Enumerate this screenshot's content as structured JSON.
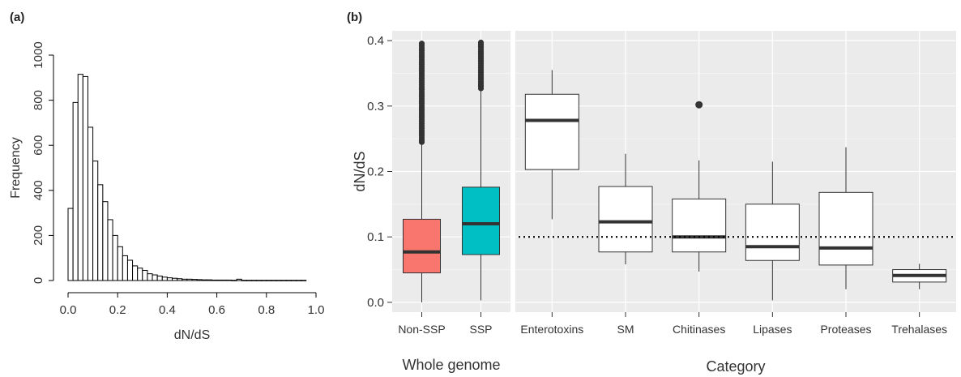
{
  "panel_labels": {
    "a": "(a)",
    "b": "(b)"
  },
  "chart_data": [
    {
      "type": "bar",
      "panel": "(a)",
      "xlabel": "dN/dS",
      "ylabel": "Frequency",
      "bin_width": 0.02,
      "xlim": [
        0,
        1.0
      ],
      "ylim": [
        0,
        1000
      ],
      "xticks": [
        "0.0",
        "0.2",
        "0.4",
        "0.6",
        "0.8",
        "1.0"
      ],
      "yticks": [
        "0",
        "200",
        "400",
        "600",
        "800",
        "1000"
      ],
      "bin_starts": [
        0.0,
        0.02,
        0.04,
        0.06,
        0.08,
        0.1,
        0.12,
        0.14,
        0.16,
        0.18,
        0.2,
        0.22,
        0.24,
        0.26,
        0.28,
        0.3,
        0.32,
        0.34,
        0.36,
        0.38,
        0.4,
        0.42,
        0.44,
        0.46,
        0.48,
        0.5,
        0.52,
        0.54,
        0.56,
        0.58,
        0.6,
        0.62,
        0.64,
        0.66,
        0.68,
        0.7,
        0.72,
        0.74,
        0.76,
        0.78,
        0.8,
        0.82,
        0.84,
        0.86,
        0.88,
        0.9,
        0.92,
        0.94
      ],
      "values": [
        320,
        790,
        915,
        905,
        680,
        530,
        425,
        350,
        270,
        200,
        150,
        110,
        90,
        65,
        55,
        45,
        30,
        25,
        20,
        15,
        12,
        10,
        8,
        6,
        6,
        5,
        4,
        3,
        3,
        2,
        2,
        2,
        2,
        1,
        6,
        1,
        1,
        1,
        1,
        1,
        1,
        1,
        1,
        1,
        1,
        1,
        1,
        1
      ],
      "color": "#ffffff",
      "edge_color": "#000000",
      "grid": false
    },
    {
      "type": "box",
      "panel": "(b)",
      "ylabel": "dN/dS",
      "ylim": [
        0,
        0.4
      ],
      "yticks": [
        "0.0",
        "0.1",
        "0.2",
        "0.3",
        "0.4"
      ],
      "grid": true,
      "background": "#ebebeb",
      "reference_line": 0.1,
      "facets": [
        {
          "label": "Whole genome",
          "categories": [
            "Non-SSP",
            "SSP"
          ],
          "boxes": [
            {
              "q1": 0.045,
              "median": 0.077,
              "q3": 0.127,
              "whisker_low": 0.0,
              "whisker_high": 0.245,
              "outliers_range": [
                0.245,
                0.398
              ],
              "color": "#f8766d"
            },
            {
              "q1": 0.073,
              "median": 0.12,
              "q3": 0.176,
              "whisker_low": 0.003,
              "whisker_high": 0.327,
              "outliers_range": [
                0.327,
                0.4
              ],
              "color": "#00bfc4"
            }
          ]
        },
        {
          "label": "Category",
          "categories": [
            "Enterotoxins",
            "SM",
            "Chitinases",
            "Lipases",
            "Proteases",
            "Trehalases"
          ],
          "boxes": [
            {
              "q1": 0.203,
              "median": 0.278,
              "q3": 0.318,
              "whisker_low": 0.127,
              "whisker_high": 0.355,
              "outliers": [],
              "color": "#ffffff"
            },
            {
              "q1": 0.077,
              "median": 0.123,
              "q3": 0.177,
              "whisker_low": 0.058,
              "whisker_high": 0.227,
              "outliers": [],
              "color": "#ffffff"
            },
            {
              "q1": 0.077,
              "median": 0.1,
              "q3": 0.158,
              "whisker_low": 0.047,
              "whisker_high": 0.217,
              "outliers": [
                0.302
              ],
              "color": "#ffffff"
            },
            {
              "q1": 0.064,
              "median": 0.085,
              "q3": 0.15,
              "whisker_low": 0.003,
              "whisker_high": 0.215,
              "outliers": [],
              "color": "#ffffff"
            },
            {
              "q1": 0.057,
              "median": 0.083,
              "q3": 0.168,
              "whisker_low": 0.02,
              "whisker_high": 0.237,
              "outliers": [],
              "color": "#ffffff"
            },
            {
              "q1": 0.031,
              "median": 0.041,
              "q3": 0.05,
              "whisker_low": 0.02,
              "whisker_high": 0.059,
              "outliers": [],
              "color": "#ffffff"
            }
          ]
        }
      ]
    }
  ]
}
